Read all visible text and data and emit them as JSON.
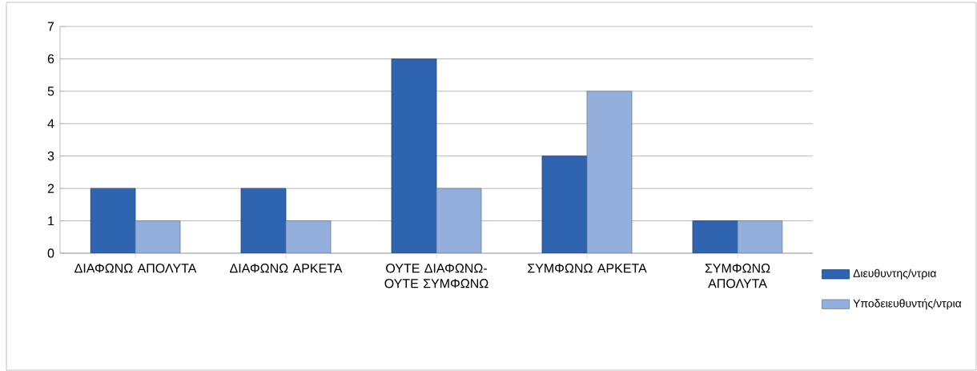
{
  "chart_data": {
    "type": "bar",
    "categories": [
      "ΔΙΑΦΩΝΩ ΑΠΟΛΥΤΑ",
      "ΔΙΑΦΩΝΩ ΑΡΚΕΤΑ",
      "ΟΥΤΕ ΔΙΑΦΩΝΩ-ΟΥΤΕ ΣΥΜΦΩΝΩ",
      "ΣΥΜΦΩΝΩ ΑΡΚΕΤΑ",
      "ΣΥΜΦΩΝΩ ΑΠΟΛΥΤΑ"
    ],
    "series": [
      {
        "name": "Διευθυντης/ντρια",
        "color": "#2f64b0",
        "values": [
          2,
          2,
          6,
          3,
          1
        ]
      },
      {
        "name": "Υποδειευθυντής/ντρια",
        "color": "#94afdc",
        "values": [
          1,
          1,
          2,
          5,
          1
        ]
      }
    ],
    "ylim": [
      0,
      7
    ],
    "yticks": [
      0,
      1,
      2,
      3,
      4,
      5,
      6,
      7
    ],
    "grid": "y",
    "legend": "right"
  }
}
